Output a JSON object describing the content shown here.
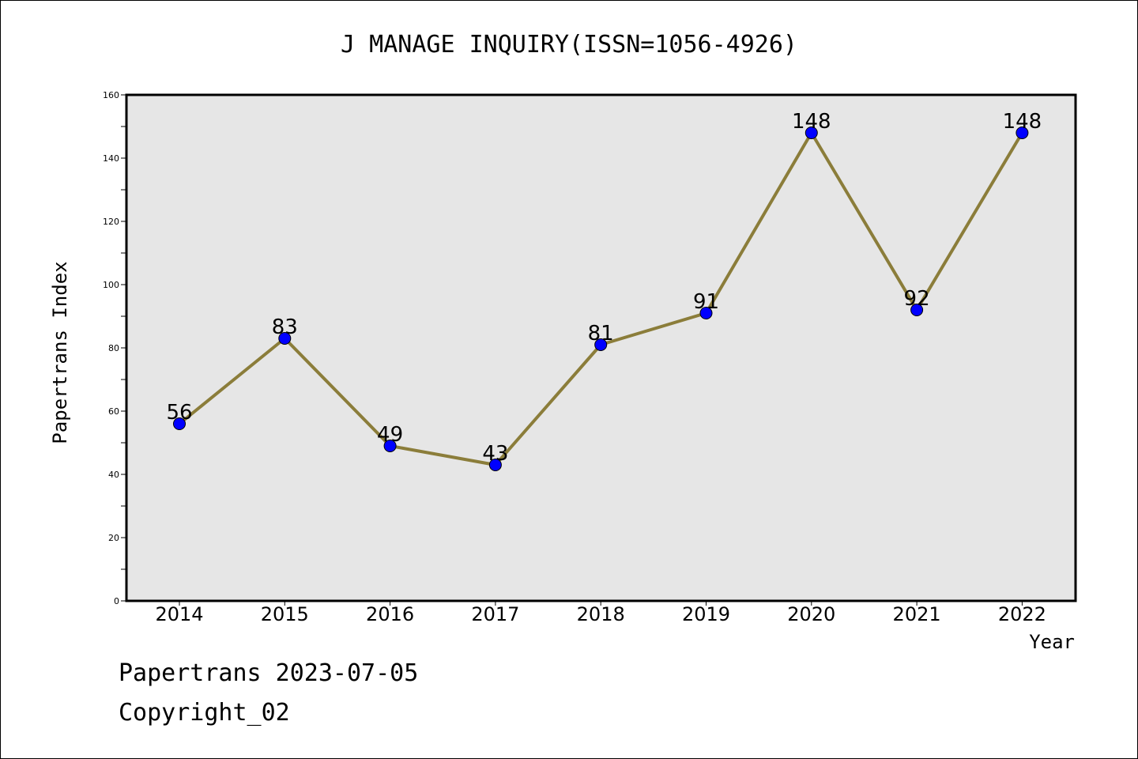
{
  "chart_data": {
    "type": "line",
    "title": "J MANAGE INQUIRY(ISSN=1056-4926)",
    "xlabel": "Year",
    "ylabel": "Papertrans Index",
    "categories": [
      "2014",
      "2015",
      "2016",
      "2017",
      "2018",
      "2019",
      "2020",
      "2021",
      "2022"
    ],
    "values": [
      56,
      83,
      49,
      43,
      81,
      91,
      148,
      92,
      148
    ],
    "data_labels": [
      "56",
      "83",
      "49",
      "43",
      "81",
      "91",
      "148",
      "92",
      "148"
    ],
    "ylim": [
      0,
      160
    ],
    "y_ticks": [
      "0",
      "20",
      "40",
      "60",
      "80",
      "100",
      "120",
      "140",
      "160"
    ],
    "grid": false,
    "legend": "none",
    "colors": {
      "line": "#8B7D3A",
      "marker": "#0000FF",
      "plot_background": "#E6E6E6"
    }
  },
  "footer": {
    "date_line": "Papertrans 2023-07-05",
    "copyright": "Copyright_02"
  }
}
